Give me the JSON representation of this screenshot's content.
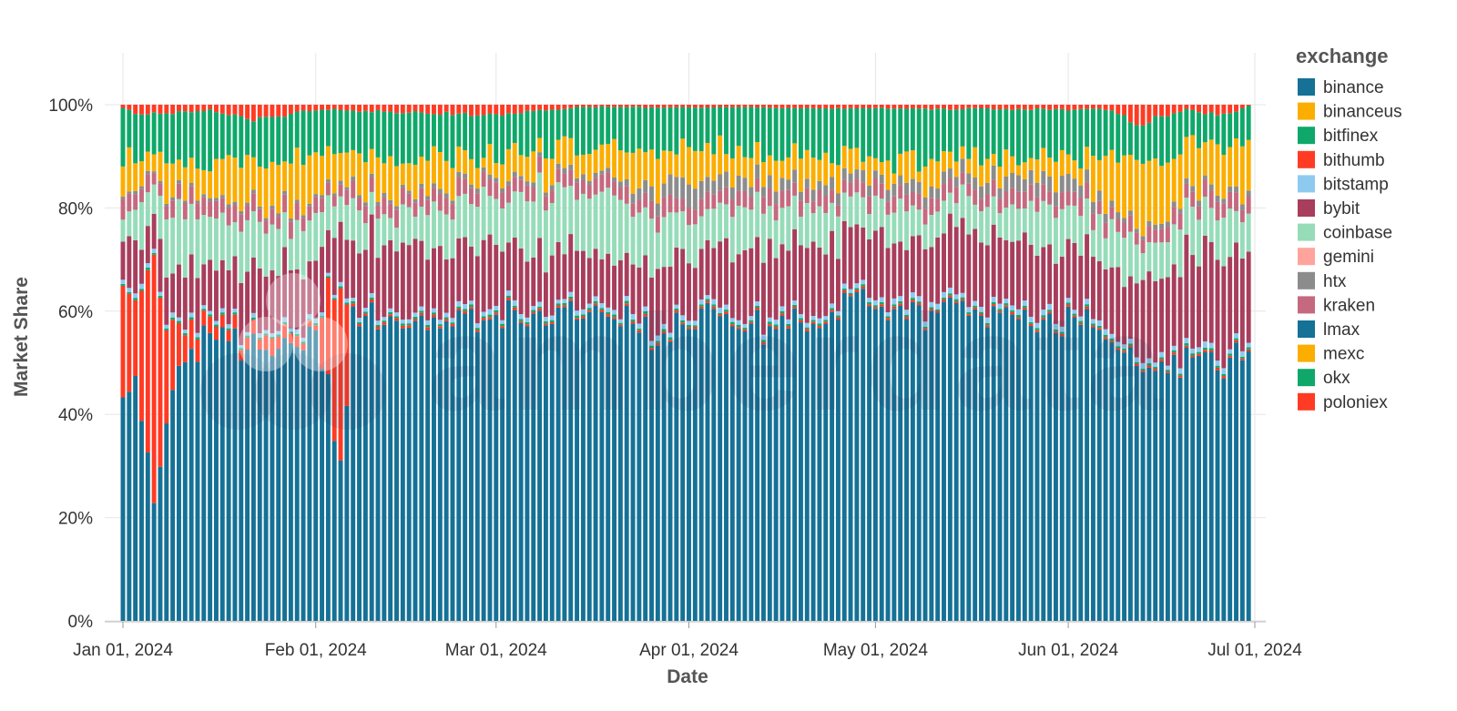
{
  "chart_data": {
    "type": "bar",
    "stacked": "normalized",
    "xlabel": "Date",
    "ylabel": "Market Share",
    "ylim": [
      0,
      1
    ],
    "y_ticks": [
      "0%",
      "20%",
      "40%",
      "60%",
      "80%",
      "100%"
    ],
    "x_ticks": [
      "Jan 01, 2024",
      "Feb 01, 2024",
      "Mar 01, 2024",
      "Apr 01, 2024",
      "May 01, 2024",
      "Jun 01, 2024",
      "Jul 01, 2024"
    ],
    "x_range": [
      "2024-01-01",
      "2024-06-30"
    ],
    "grid": true,
    "legend": {
      "title": "exchange",
      "position": "right"
    },
    "watermark": "amberdata",
    "series": [
      {
        "name": "binance",
        "color": "#157196"
      },
      {
        "name": "binanceus",
        "color": "#fbae00"
      },
      {
        "name": "bitfinex",
        "color": "#0fa86a"
      },
      {
        "name": "bithumb",
        "color": "#ff3b24"
      },
      {
        "name": "bitstamp",
        "color": "#8ecaf0"
      },
      {
        "name": "bybit",
        "color": "#a83d5c"
      },
      {
        "name": "coinbase",
        "color": "#96dcb9"
      },
      {
        "name": "gemini",
        "color": "#ffa49c"
      },
      {
        "name": "htx",
        "color": "#8c8c8c"
      },
      {
        "name": "kraken",
        "color": "#c5697f"
      },
      {
        "name": "lmax",
        "color": "#157196"
      },
      {
        "name": "mexc",
        "color": "#fbae00"
      },
      {
        "name": "okx",
        "color": "#0fa86a"
      },
      {
        "name": "poloniex",
        "color": "#ff3b24"
      }
    ],
    "anchors": {
      "binance": [
        [
          "2024-01-01",
          0.41
        ],
        [
          "2024-01-03",
          0.42
        ],
        [
          "2024-01-06",
          0.27
        ],
        [
          "2024-01-08",
          0.4
        ],
        [
          "2024-01-10",
          0.48
        ],
        [
          "2024-01-14",
          0.55
        ],
        [
          "2024-01-20",
          0.55
        ],
        [
          "2024-01-26",
          0.56
        ],
        [
          "2024-02-03",
          0.57
        ],
        [
          "2024-02-05",
          0.35
        ],
        [
          "2024-02-07",
          0.62
        ],
        [
          "2024-02-12",
          0.58
        ],
        [
          "2024-02-18",
          0.6
        ],
        [
          "2024-02-25",
          0.58
        ],
        [
          "2024-03-01",
          0.6
        ],
        [
          "2024-03-08",
          0.65
        ],
        [
          "2024-03-15",
          0.62
        ],
        [
          "2024-03-22",
          0.58
        ],
        [
          "2024-03-28",
          0.52
        ],
        [
          "2024-04-01",
          0.62
        ],
        [
          "2024-04-08",
          0.6
        ],
        [
          "2024-04-15",
          0.58
        ],
        [
          "2024-04-22",
          0.62
        ],
        [
          "2024-04-28",
          0.66
        ],
        [
          "2024-05-01",
          0.62
        ],
        [
          "2024-05-08",
          0.6
        ],
        [
          "2024-05-15",
          0.64
        ],
        [
          "2024-05-22",
          0.6
        ],
        [
          "2024-05-28",
          0.58
        ],
        [
          "2024-06-01",
          0.61
        ],
        [
          "2024-06-05",
          0.58
        ],
        [
          "2024-06-10",
          0.56
        ],
        [
          "2024-06-14",
          0.52
        ],
        [
          "2024-06-20",
          0.52
        ],
        [
          "2024-06-25",
          0.48
        ],
        [
          "2024-06-30",
          0.52
        ]
      ],
      "poloniex": [
        [
          "2024-01-01",
          0.22
        ],
        [
          "2024-01-03",
          0.12
        ],
        [
          "2024-01-06",
          0.5
        ],
        [
          "2024-01-08",
          0.18
        ],
        [
          "2024-01-10",
          0.08
        ],
        [
          "2024-01-14",
          0.03
        ],
        [
          "2024-01-20",
          0.02
        ],
        [
          "2024-01-25",
          0.03
        ],
        [
          "2024-02-01",
          0.01
        ],
        [
          "2024-02-05",
          0.45
        ],
        [
          "2024-02-07",
          0.005
        ],
        [
          "2024-03-01",
          0.004
        ],
        [
          "2024-06-30",
          0.004
        ]
      ],
      "okx": [
        [
          "2024-01-01",
          0.004
        ],
        [
          "2024-06-30",
          0.004
        ]
      ],
      "bitstamp": [
        [
          "2024-01-01",
          0.008
        ],
        [
          "2024-06-30",
          0.01
        ]
      ],
      "bybit": [
        [
          "2024-01-01",
          0.08
        ],
        [
          "2024-01-10",
          0.1
        ],
        [
          "2024-02-01",
          0.12
        ],
        [
          "2024-02-15",
          0.14
        ],
        [
          "2024-03-01",
          0.12
        ],
        [
          "2024-03-20",
          0.1
        ],
        [
          "2024-04-15",
          0.14
        ],
        [
          "2024-05-01",
          0.12
        ],
        [
          "2024-05-20",
          0.14
        ],
        [
          "2024-06-01",
          0.12
        ],
        [
          "2024-06-10",
          0.14
        ],
        [
          "2024-06-20",
          0.18
        ],
        [
          "2024-06-30",
          0.18
        ]
      ],
      "coinbase": [
        [
          "2024-01-01",
          0.06
        ],
        [
          "2024-01-10",
          0.1
        ],
        [
          "2024-01-25",
          0.08
        ],
        [
          "2024-02-15",
          0.06
        ],
        [
          "2024-03-01",
          0.1
        ],
        [
          "2024-03-15",
          0.12
        ],
        [
          "2024-04-01",
          0.08
        ],
        [
          "2024-04-20",
          0.08
        ],
        [
          "2024-05-10",
          0.06
        ],
        [
          "2024-05-25",
          0.07
        ],
        [
          "2024-06-10",
          0.08
        ],
        [
          "2024-06-30",
          0.08
        ]
      ],
      "kraken": [
        [
          "2024-01-01",
          0.03
        ],
        [
          "2024-06-30",
          0.03
        ]
      ],
      "htx": [
        [
          "2024-01-01",
          0.005
        ],
        [
          "2024-03-20",
          0.01
        ],
        [
          "2024-04-01",
          0.04
        ],
        [
          "2024-04-10",
          0.025
        ],
        [
          "2024-05-01",
          0.02
        ],
        [
          "2024-05-20",
          0.025
        ],
        [
          "2024-06-01",
          0.03
        ],
        [
          "2024-06-10",
          0.01
        ],
        [
          "2024-06-30",
          0.01
        ]
      ],
      "binanceus": [
        [
          "2024-01-01",
          0.06
        ],
        [
          "2024-01-10",
          0.06
        ],
        [
          "2024-02-01",
          0.09
        ],
        [
          "2024-02-15",
          0.06
        ],
        [
          "2024-03-01",
          0.04
        ],
        [
          "2024-03-20",
          0.07
        ],
        [
          "2024-04-01",
          0.06
        ],
        [
          "2024-05-01",
          0.04
        ],
        [
          "2024-06-01",
          0.04
        ],
        [
          "2024-06-12",
          0.14
        ],
        [
          "2024-06-20",
          0.08
        ],
        [
          "2024-06-30",
          0.1
        ]
      ],
      "bitfinex": [
        [
          "2024-01-01",
          0.08
        ],
        [
          "2024-01-10",
          0.1
        ],
        [
          "2024-02-01",
          0.09
        ],
        [
          "2024-03-01",
          0.08
        ],
        [
          "2024-04-01",
          0.08
        ],
        [
          "2024-05-01",
          0.1
        ],
        [
          "2024-06-01",
          0.1
        ],
        [
          "2024-06-14",
          0.08
        ],
        [
          "2024-06-30",
          0.065
        ]
      ],
      "bithumb": [
        [
          "2024-01-01",
          0.005
        ],
        [
          "2024-01-05",
          0.02
        ],
        [
          "2024-01-15",
          0.01
        ],
        [
          "2024-01-22",
          0.03
        ],
        [
          "2024-02-01",
          0.01
        ],
        [
          "2024-03-01",
          0.02
        ],
        [
          "2024-03-15",
          0.004
        ],
        [
          "2024-06-08",
          0.01
        ],
        [
          "2024-06-12",
          0.04
        ],
        [
          "2024-06-20",
          0.01
        ],
        [
          "2024-06-26",
          0.02
        ],
        [
          "2024-06-30",
          0.002
        ]
      ]
    }
  }
}
